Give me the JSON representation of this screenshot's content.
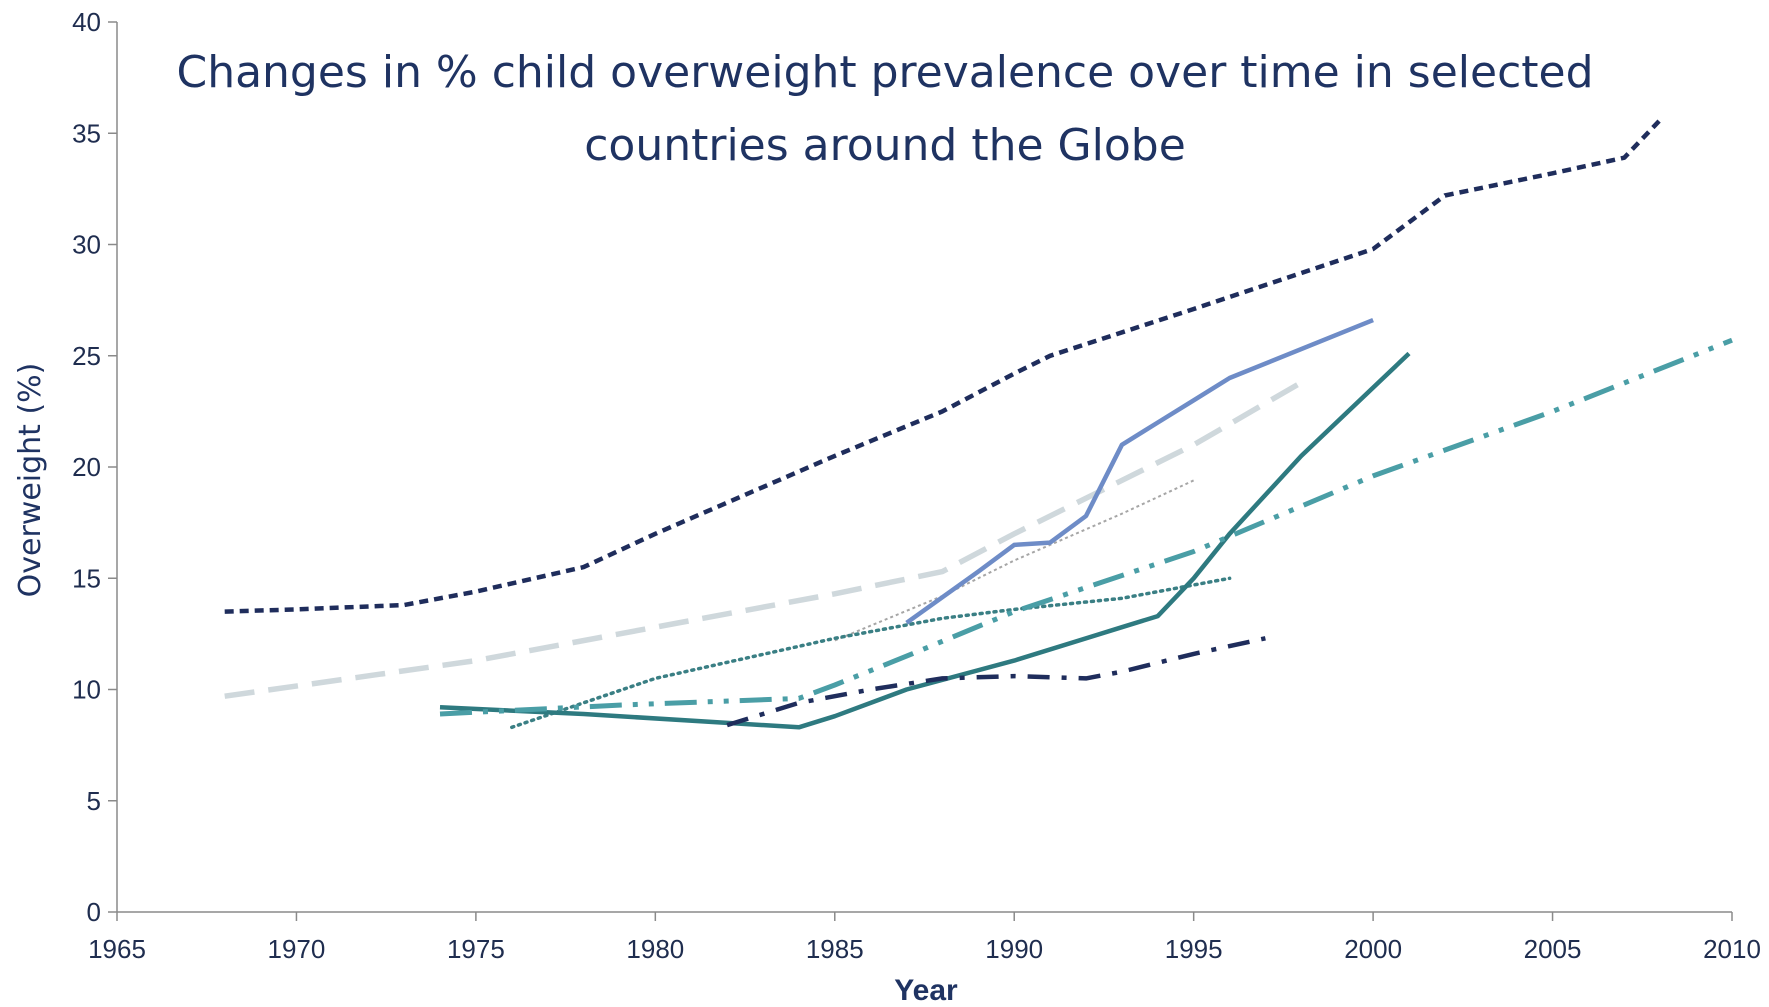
{
  "chart_data": {
    "type": "line",
    "title_line1": "Changes in % child overweight prevalence over time in selected",
    "title_line2": "countries around the Globe",
    "xlabel": "Year",
    "ylabel": "Overweight (%)",
    "xlim": [
      1965,
      2010
    ],
    "ylim": [
      0,
      40
    ],
    "x_ticks": [
      1965,
      1970,
      1975,
      1980,
      1985,
      1990,
      1995,
      2000,
      2005,
      2010
    ],
    "y_ticks": [
      0,
      5,
      10,
      15,
      20,
      25,
      30,
      35,
      40
    ],
    "grid": false,
    "legend": "none",
    "series": [
      {
        "color": "#1f2d5c",
        "style": "short-dash",
        "points": [
          [
            1968,
            13.5
          ],
          [
            1970,
            13.6
          ],
          [
            1973,
            13.8
          ],
          [
            1975,
            14.4
          ],
          [
            1978,
            15.5
          ],
          [
            1980,
            17.0
          ],
          [
            1985,
            20.5
          ],
          [
            1988,
            22.5
          ],
          [
            1990,
            24.2
          ],
          [
            1991,
            25.0
          ],
          [
            1995,
            27.1
          ],
          [
            2000,
            29.8
          ],
          [
            2001,
            31.0
          ],
          [
            2002,
            32.2
          ],
          [
            2005,
            33.2
          ],
          [
            2007,
            33.9
          ],
          [
            2008,
            35.6
          ]
        ]
      },
      {
        "color": "#cfd8dc",
        "style": "long-dash",
        "points": [
          [
            1968,
            9.7
          ],
          [
            1975,
            11.3
          ],
          [
            1980,
            12.8
          ],
          [
            1985,
            14.3
          ],
          [
            1988,
            15.3
          ],
          [
            1990,
            17.0
          ],
          [
            1995,
            21.0
          ],
          [
            1998,
            23.8
          ]
        ]
      },
      {
        "color": "#a6a6a6",
        "style": "fine-dot",
        "points": [
          [
            1985,
            12.2
          ],
          [
            1988,
            14.2
          ],
          [
            1990,
            15.8
          ],
          [
            1993,
            17.9
          ],
          [
            1995,
            19.4
          ]
        ]
      },
      {
        "color": "#3a7f84",
        "style": "dot",
        "points": [
          [
            1976,
            8.3
          ],
          [
            1980,
            10.5
          ],
          [
            1985,
            12.3
          ],
          [
            1988,
            13.2
          ],
          [
            1990,
            13.6
          ],
          [
            1993,
            14.1
          ],
          [
            1996,
            15.0
          ]
        ]
      },
      {
        "color": "#6e8cc7",
        "style": "solid",
        "points": [
          [
            1987,
            13.0
          ],
          [
            1989,
            15.3
          ],
          [
            1990,
            16.5
          ],
          [
            1991,
            16.6
          ],
          [
            1992,
            17.8
          ],
          [
            1993,
            21.0
          ],
          [
            1994,
            22.0
          ],
          [
            1995,
            23.0
          ],
          [
            1996,
            24.0
          ],
          [
            2000,
            26.6
          ]
        ]
      },
      {
        "color": "#2e7a80",
        "style": "solid",
        "points": [
          [
            1974,
            9.2
          ],
          [
            1978,
            8.9
          ],
          [
            1982,
            8.5
          ],
          [
            1984,
            8.3
          ],
          [
            1985,
            8.8
          ],
          [
            1987,
            10.0
          ],
          [
            1990,
            11.3
          ],
          [
            1993,
            12.8
          ],
          [
            1994,
            13.3
          ],
          [
            1995,
            15.0
          ],
          [
            1996,
            17.0
          ],
          [
            1998,
            20.5
          ],
          [
            2001,
            25.1
          ]
        ]
      },
      {
        "color": "#4a9ea6",
        "style": "dash-dot-dot",
        "points": [
          [
            1974,
            8.9
          ],
          [
            1979,
            9.3
          ],
          [
            1984,
            9.6
          ],
          [
            1985,
            10.2
          ],
          [
            1987,
            11.5
          ],
          [
            1990,
            13.5
          ],
          [
            1995,
            16.2
          ],
          [
            2000,
            19.6
          ],
          [
            2005,
            22.5
          ],
          [
            2010,
            25.7
          ]
        ]
      },
      {
        "color": "#1f2d5c",
        "style": "dash-dot",
        "points": [
          [
            1982,
            8.4
          ],
          [
            1984,
            9.4
          ],
          [
            1986,
            10.0
          ],
          [
            1988,
            10.5
          ],
          [
            1990,
            10.6
          ],
          [
            1992,
            10.5
          ],
          [
            1993,
            10.8
          ],
          [
            1995,
            11.6
          ],
          [
            1997,
            12.3
          ]
        ]
      }
    ]
  }
}
